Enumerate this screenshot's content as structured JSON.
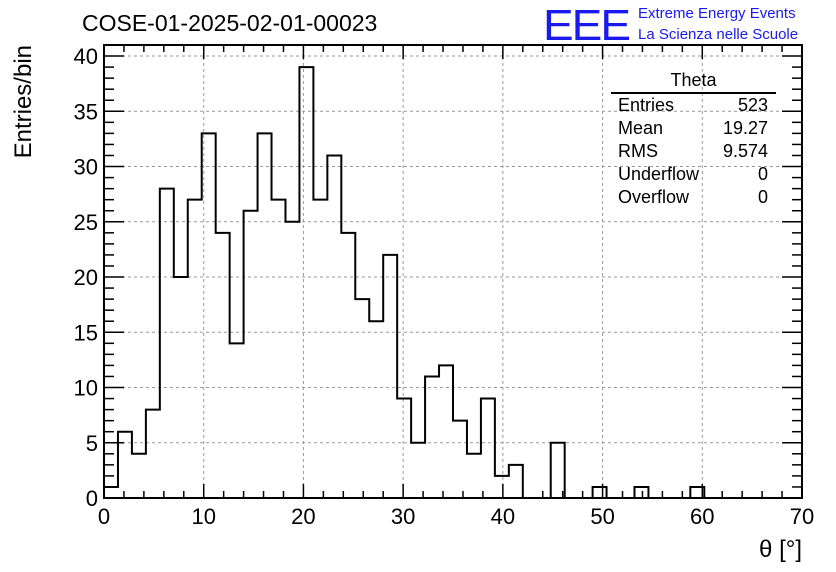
{
  "run_title": "COSE-01-2025-02-01-00023",
  "logo": {
    "mark": "EEE",
    "line1": "Extreme Energy Events",
    "line2": "La Scienza nelle Scuole",
    "color": "#1a1aee"
  },
  "stats_box": {
    "title": "Theta",
    "rows": [
      {
        "label": "Entries",
        "value": "523"
      },
      {
        "label": "Mean",
        "value": "19.27"
      },
      {
        "label": "RMS",
        "value": "9.574"
      },
      {
        "label": "Underflow",
        "value": "0"
      },
      {
        "label": "Overflow",
        "value": "0"
      }
    ]
  },
  "chart_data": {
    "type": "bar",
    "histogram": true,
    "title": "COSE-01-2025-02-01-00023",
    "xlabel": "θ [°]",
    "ylabel": "Entries/bin",
    "xlim": [
      0,
      70
    ],
    "ylim": [
      0,
      41
    ],
    "bin_width": 1.4,
    "x_ticks": [
      0,
      10,
      20,
      30,
      40,
      50,
      60,
      70
    ],
    "y_ticks": [
      0,
      5,
      10,
      15,
      20,
      25,
      30,
      35,
      40
    ],
    "grid": true,
    "line_color": "#000000",
    "values": [
      1,
      6,
      4,
      8,
      28,
      20,
      27,
      33,
      24,
      14,
      26,
      33,
      27,
      25,
      39,
      27,
      31,
      24,
      18,
      16,
      22,
      9,
      5,
      11,
      12,
      7,
      4,
      9,
      2,
      3,
      0,
      0,
      5,
      0,
      0,
      1,
      0,
      0,
      1,
      0,
      0,
      0,
      1,
      0,
      0,
      0,
      0,
      0,
      0,
      0
    ]
  }
}
